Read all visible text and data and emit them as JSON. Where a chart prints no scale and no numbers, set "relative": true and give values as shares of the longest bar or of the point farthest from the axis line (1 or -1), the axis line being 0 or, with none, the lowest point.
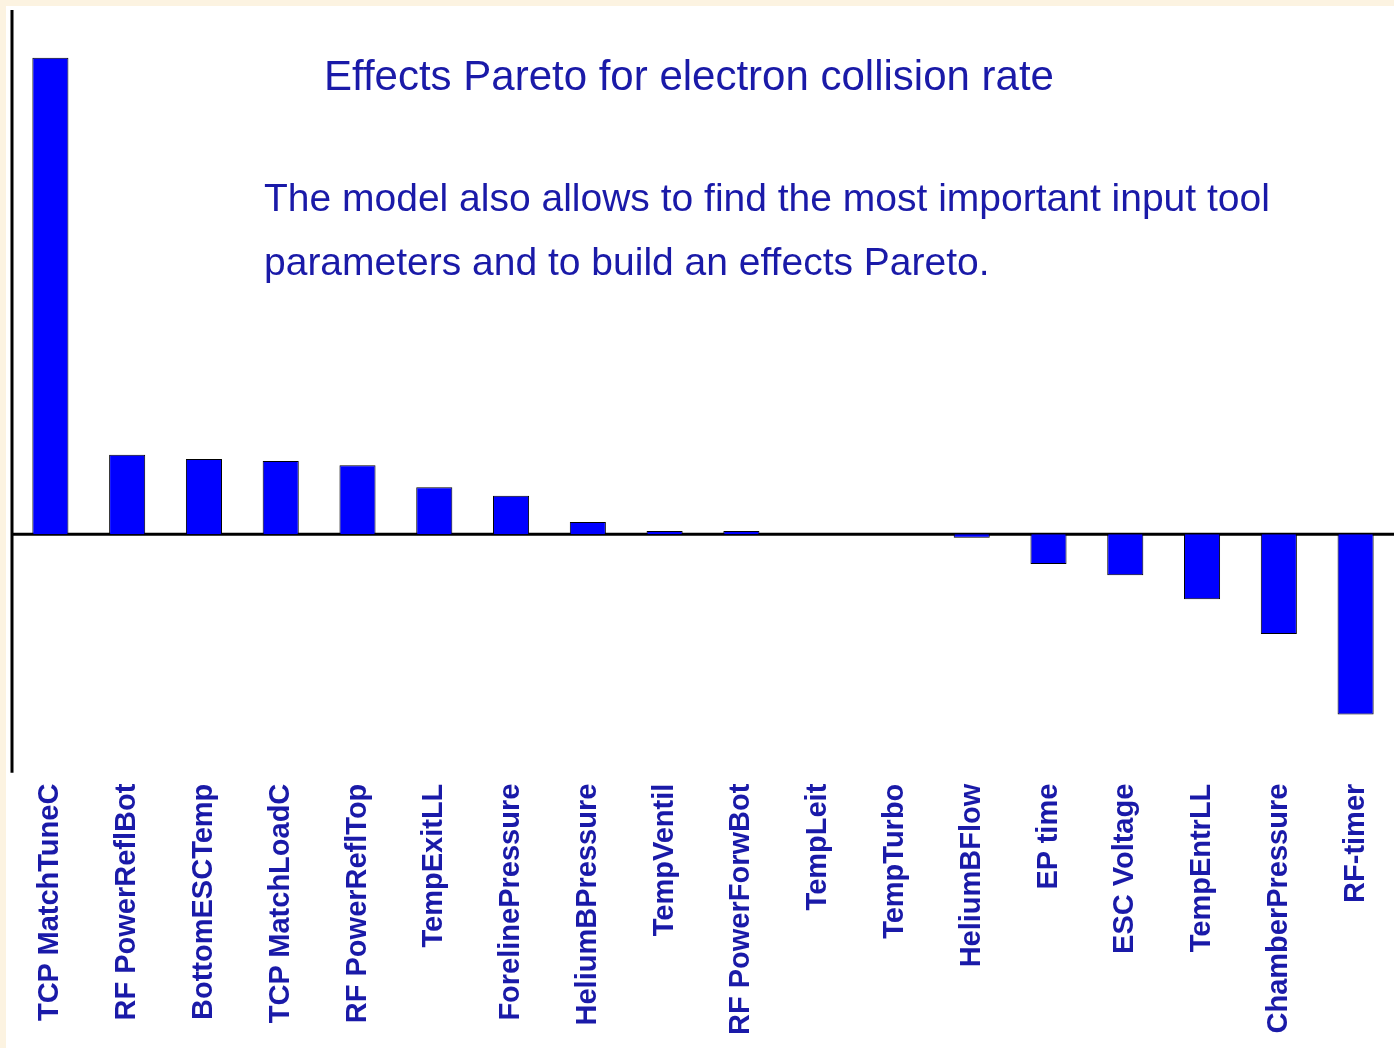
{
  "chart_data": {
    "type": "bar",
    "relative": true,
    "title": "Effects Pareto for electron collision rate",
    "annotations": [
      "The model also allows to find the most important input tool parameters and to build an effects Pareto."
    ],
    "categories": [
      "TCP MatchTuneC",
      "RF PowerReflBot",
      "BottomESCTemp",
      "TCP MatchLoadC",
      "RF PowerReflTop",
      "TempExitLL",
      "ForelinePressure",
      "HeliumBPressure",
      "TempVentil",
      "RF PowerForwBot",
      "TempLeit",
      "TempTurbo",
      "HeliumBFlow",
      "EP time",
      "ESC Voltage",
      "TempEntrLL",
      "ChamberPressure",
      "RF-timer"
    ],
    "values": [
      1,
      0.167,
      0.158,
      0.154,
      0.145,
      0.099,
      0.081,
      0.026,
      0.007,
      0.007,
      0,
      0,
      -0.007,
      -0.062,
      -0.086,
      -0.136,
      -0.209,
      -0.378
    ],
    "color": "#0000ff"
  }
}
